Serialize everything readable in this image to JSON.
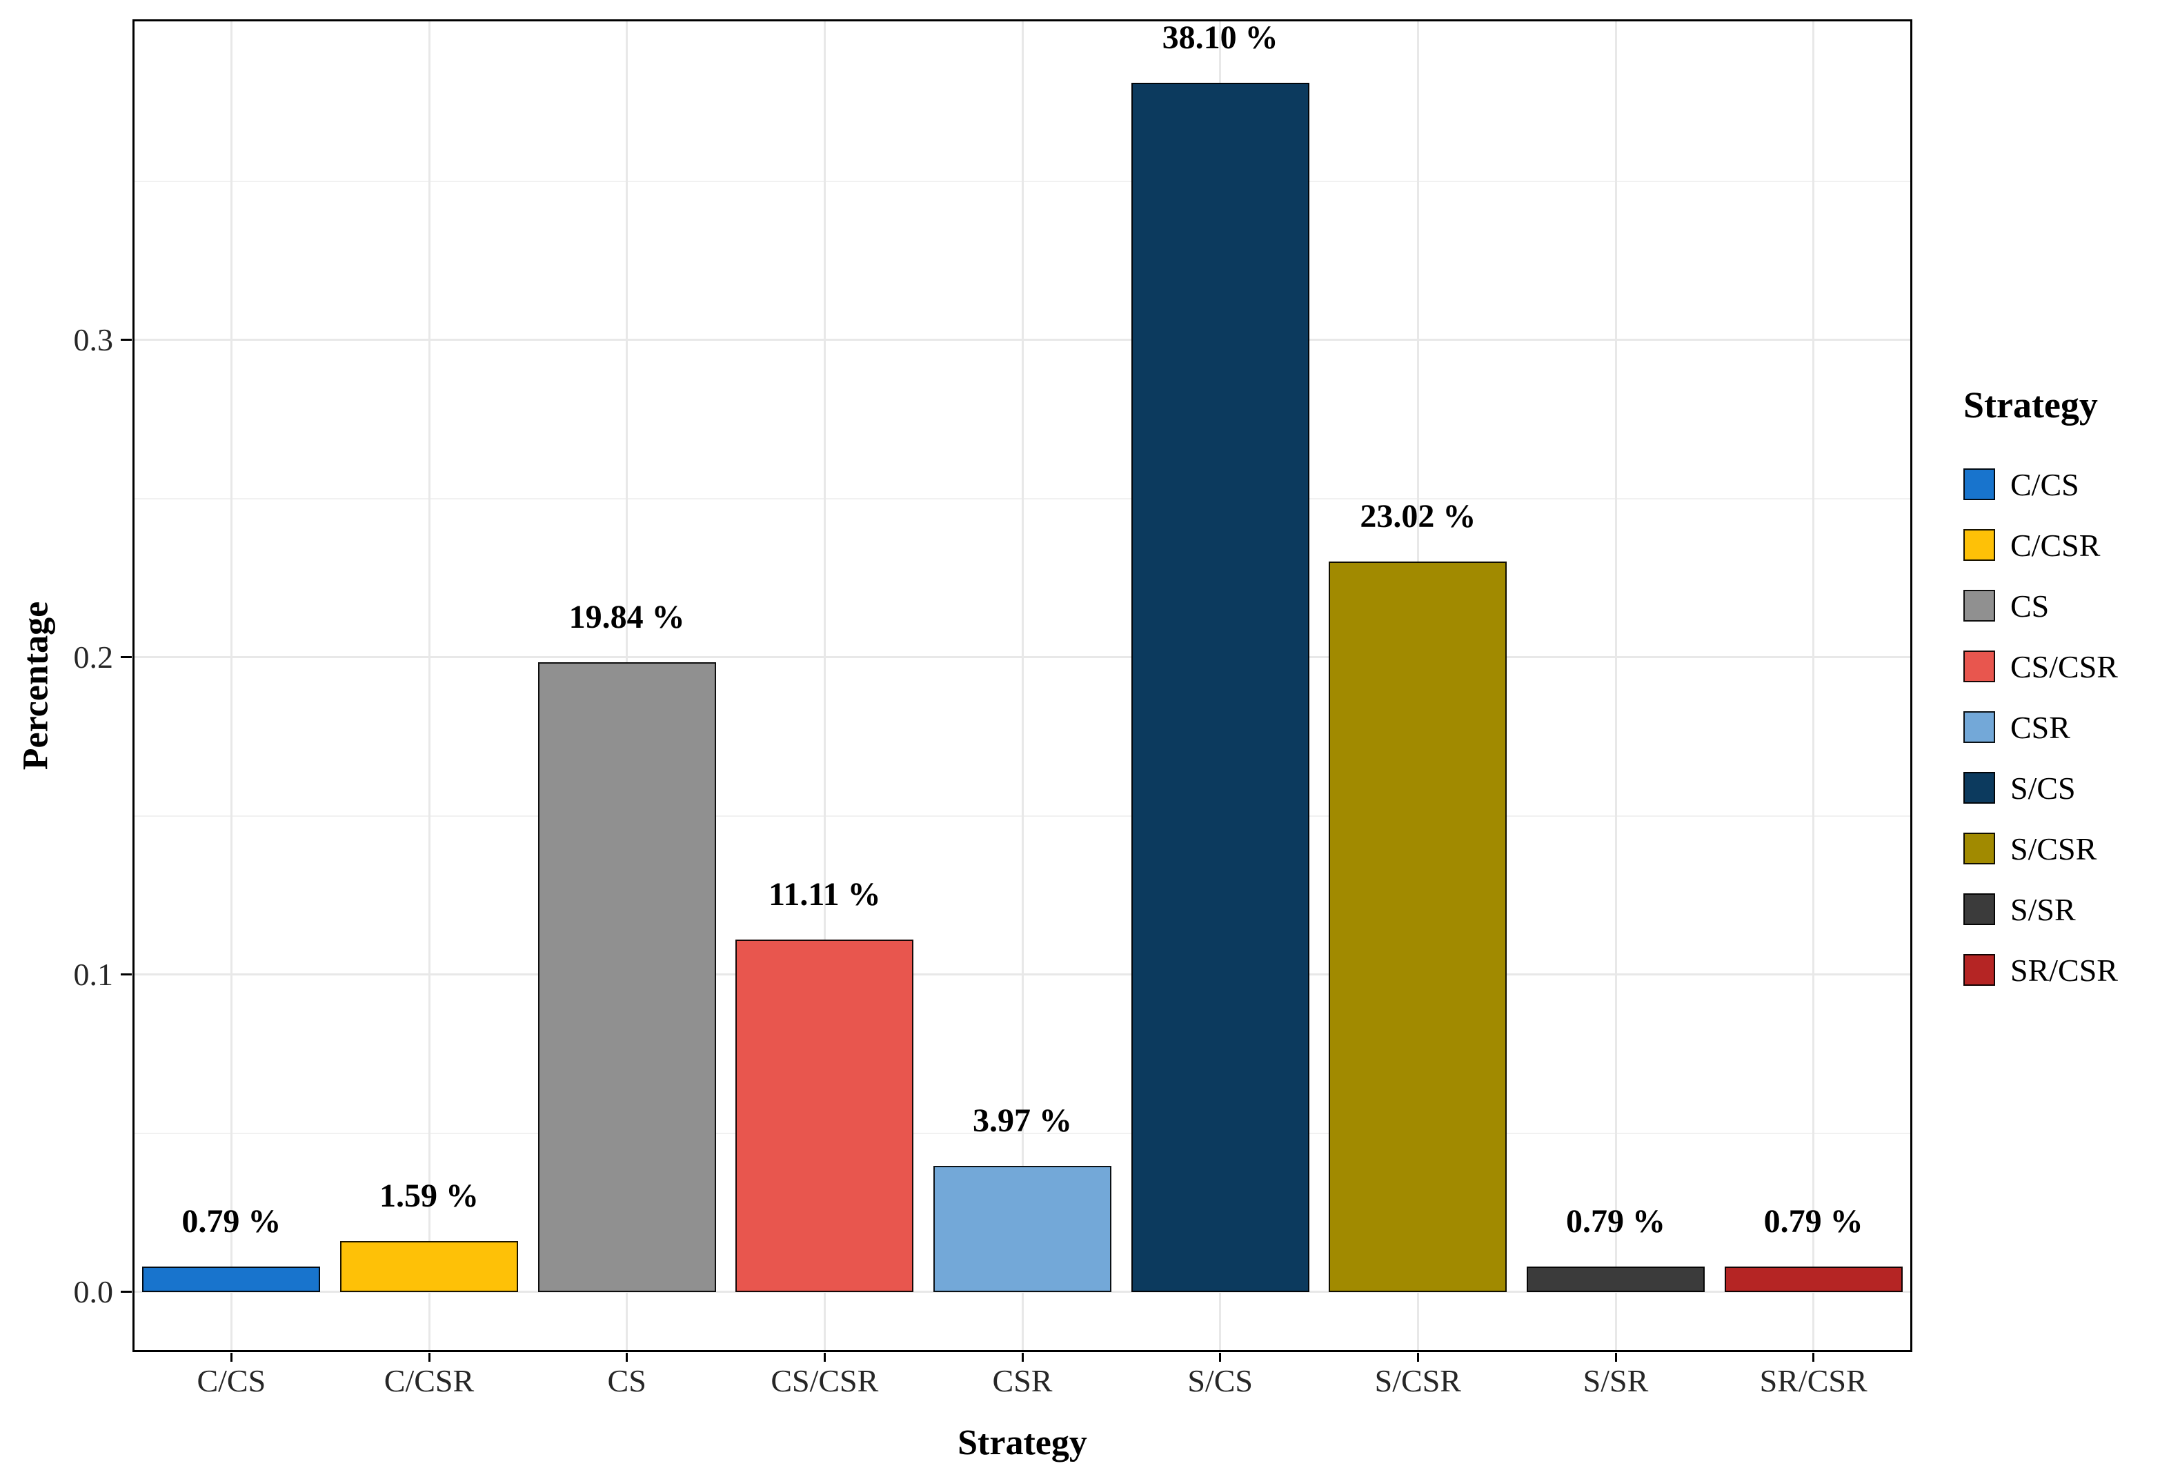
{
  "chart_data": {
    "type": "bar",
    "title": "",
    "xlabel": "Strategy",
    "ylabel": "Percentage",
    "categories": [
      "C/CS",
      "C/CSR",
      "CS",
      "CS/CSR",
      "CSR",
      "S/CS",
      "S/CSR",
      "S/SR",
      "SR/CSR"
    ],
    "values": [
      0.0079,
      0.0159,
      0.1984,
      0.1111,
      0.0397,
      0.381,
      0.2302,
      0.0079,
      0.0079
    ],
    "bar_labels": [
      "0.79 %",
      "1.59 %",
      "19.84 %",
      "11.11 %",
      "3.97 %",
      "38.10 %",
      "23.02 %",
      "0.79 %",
      "0.79 %"
    ],
    "colors": [
      "#1874CD",
      "#FEC107",
      "#909090",
      "#E8564E",
      "#73A8D8",
      "#0C3A5E",
      "#A18A00",
      "#3B3B3B",
      "#B52524"
    ],
    "y_ticks": [
      0.0,
      0.1,
      0.2,
      0.3
    ],
    "y_tick_labels": [
      "0.0",
      "0.1",
      "0.2",
      "0.3"
    ],
    "y_minor_ticks": [
      0.05,
      0.15,
      0.25,
      0.35
    ],
    "ylim": [
      -0.019,
      0.401
    ],
    "grid": true,
    "bar_width_fraction": 0.9,
    "legend": {
      "title": "Strategy",
      "position": "right",
      "entries": [
        "C/CS",
        "C/CSR",
        "CS",
        "CS/CSR",
        "CSR",
        "S/CS",
        "S/CSR",
        "S/SR",
        "SR/CSR"
      ]
    }
  },
  "colors": {
    "background": "#FFFFFF",
    "grid_major": "#E8E8E8",
    "grid_minor": "#F1F1F1",
    "panel_border": "#000000",
    "axis_text": "#262626",
    "label_text": "#000000"
  }
}
